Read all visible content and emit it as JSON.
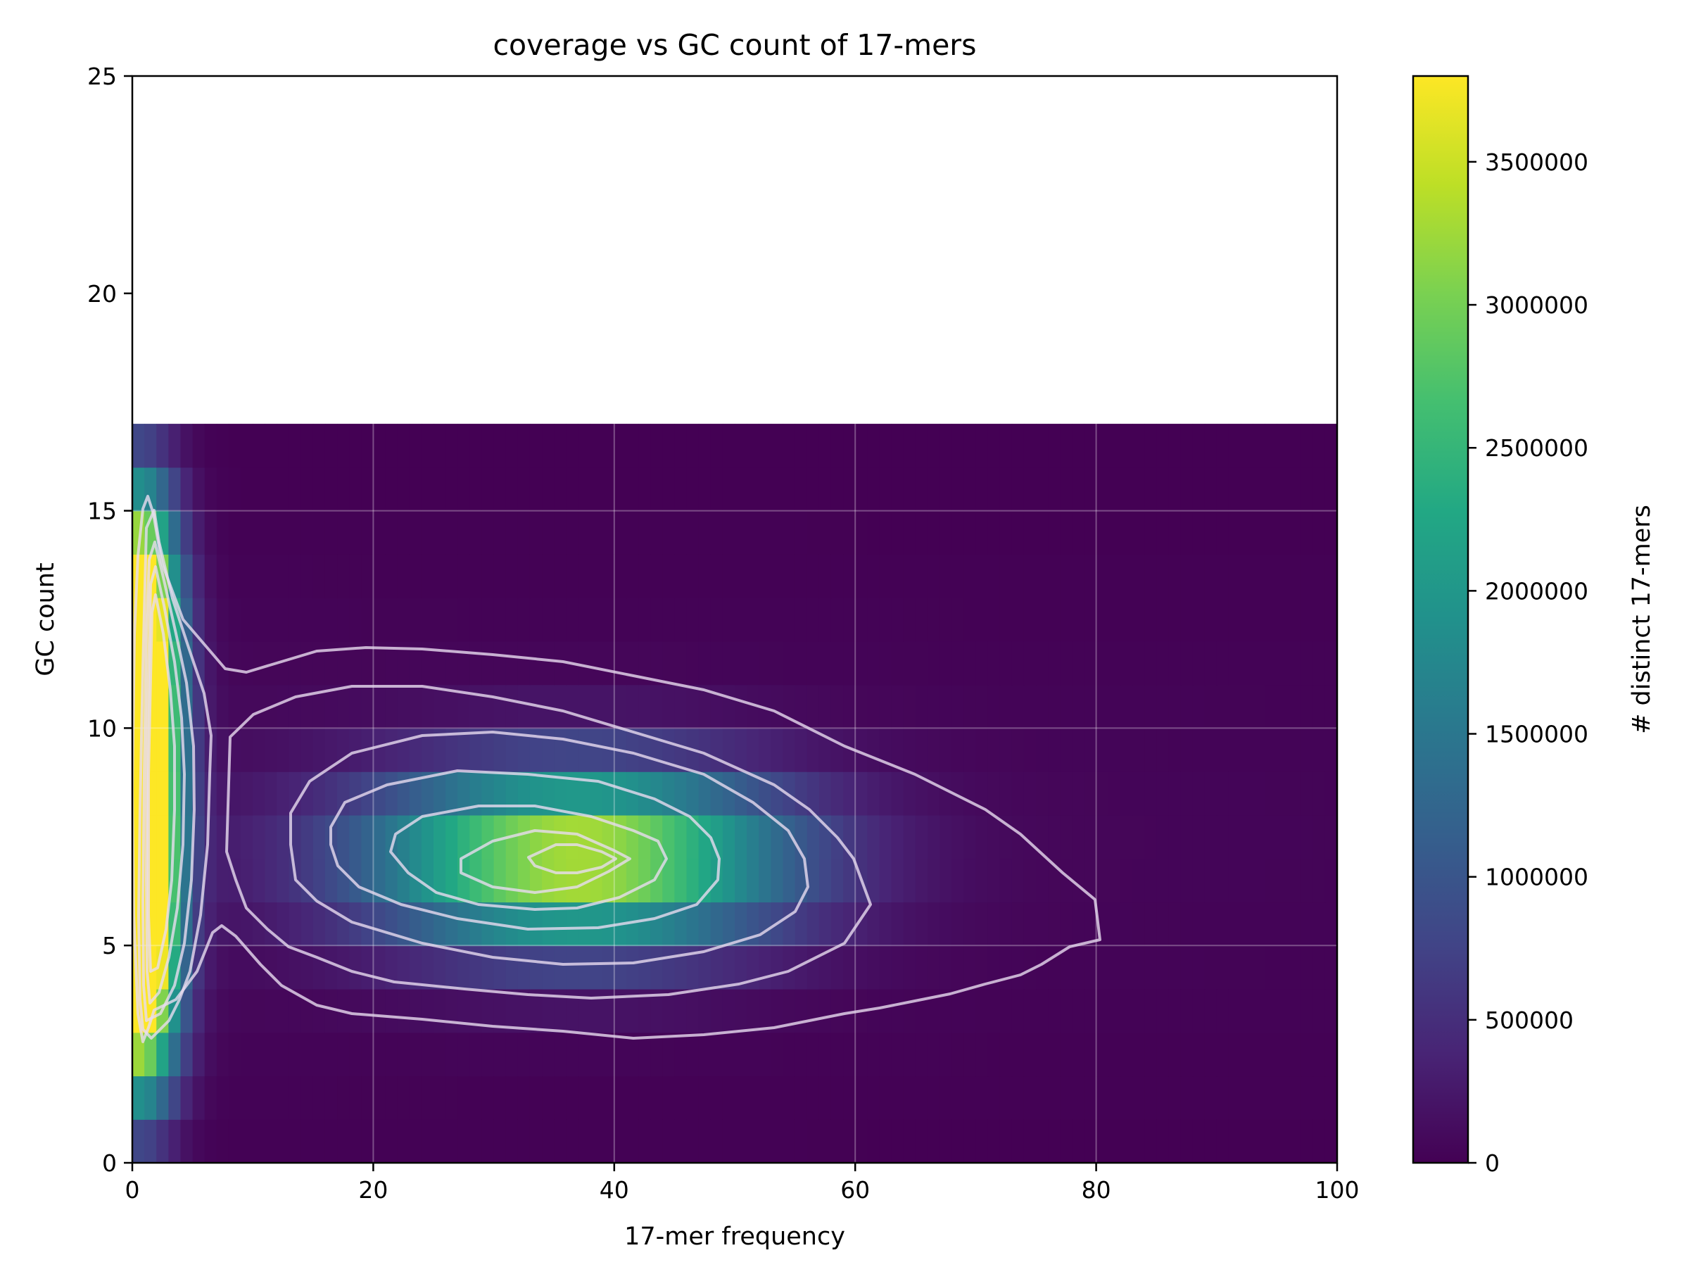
{
  "chart_data": {
    "type": "heatmap",
    "title": "coverage vs GC count of 17-mers",
    "xlabel": "17-mer frequency",
    "ylabel": "GC count",
    "xlim": [
      0,
      100
    ],
    "ylim": [
      0,
      25
    ],
    "x_ticks": [
      "0",
      "20",
      "40",
      "60",
      "80",
      "100"
    ],
    "y_ticks": [
      "0",
      "5",
      "10",
      "15",
      "20",
      "25"
    ],
    "grid": true,
    "colormap": "viridis",
    "colorbar": {
      "label": "# distinct 17-mers",
      "range": [
        0,
        3800000
      ],
      "ticks": [
        "0",
        "500000",
        "1000000",
        "1500000",
        "2000000",
        "2500000",
        "3000000",
        "3500000"
      ]
    },
    "x_bins": [
      0,
      100
    ],
    "y_bins": [
      0,
      17
    ],
    "peaks": [
      {
        "x": 1,
        "y_range": [
          3,
          14
        ],
        "value": 3800000
      },
      {
        "x": 37,
        "y": 7,
        "value": 3400000
      }
    ],
    "contour_levels": [
      "outer",
      "2",
      "3",
      "4",
      "5",
      "inner"
    ],
    "colors": {
      "low": "#440154",
      "mid": "#21918c",
      "high": "#fde725",
      "contour": "#e8dcf0"
    }
  }
}
